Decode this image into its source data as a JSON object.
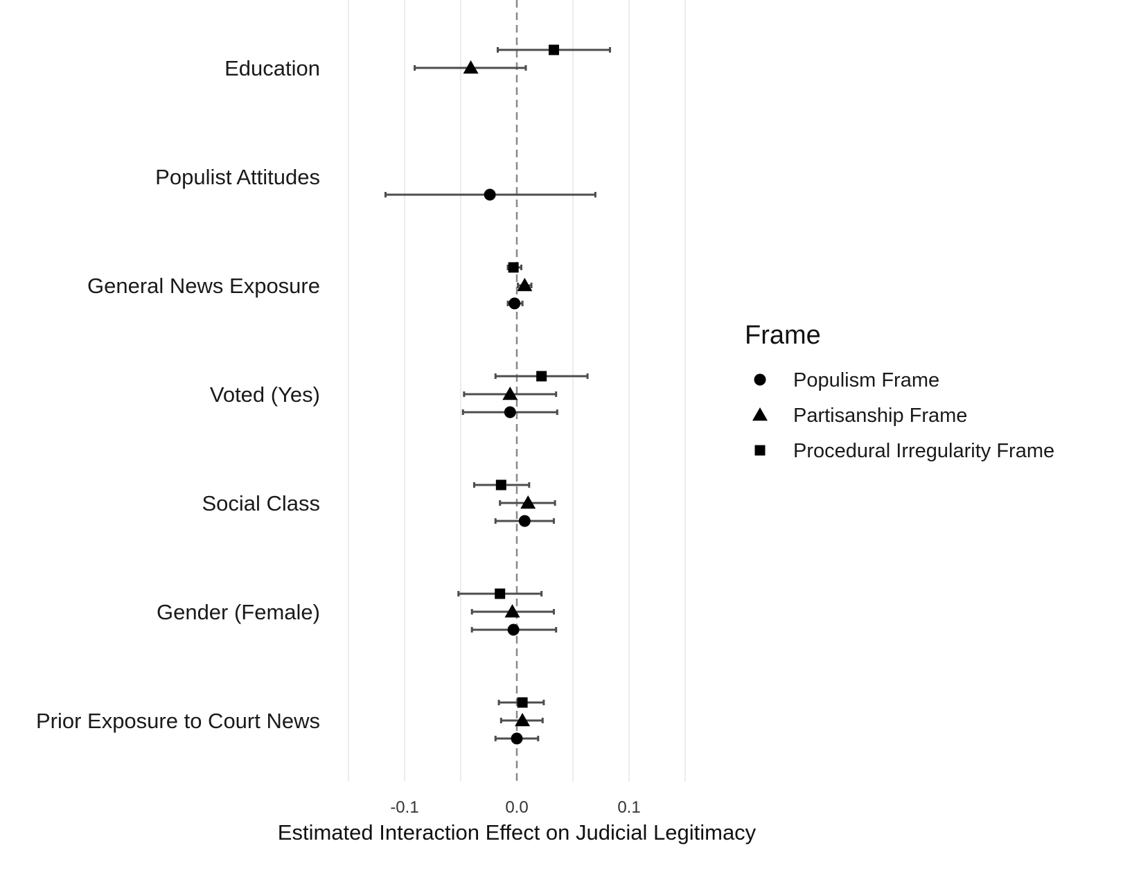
{
  "chart_data": {
    "type": "scatter",
    "subtype": "coefficient-plot-with-error-bars",
    "xlabel": "Estimated Interaction Effect on Judicial Legitimacy",
    "ylabel": "",
    "xlim": [
      -0.15,
      0.15
    ],
    "xticks": [
      -0.1,
      0.0,
      0.1
    ],
    "xtick_labels": [
      "-0.1",
      "0.0",
      "0.1"
    ],
    "grid": true,
    "reference_line": {
      "x": 0.0,
      "style": "dashed",
      "color": "#888888"
    },
    "categories": [
      "Education",
      "Populist Attitudes",
      "General News Exposure",
      "Voted (Yes)",
      "Social Class",
      "Gender (Female)",
      "Prior Exposure to Court News"
    ],
    "legend": {
      "title": "Frame",
      "position": "right"
    },
    "series": [
      {
        "name": "Populism Frame",
        "marker": "circle",
        "color": "#000000",
        "points": [
          {
            "category": "Populist Attitudes",
            "estimate": -0.024,
            "low": -0.117,
            "high": 0.07
          },
          {
            "category": "General News Exposure",
            "estimate": -0.002,
            "low": -0.008,
            "high": 0.005
          },
          {
            "category": "Voted (Yes)",
            "estimate": -0.006,
            "low": -0.048,
            "high": 0.036
          },
          {
            "category": "Social Class",
            "estimate": 0.007,
            "low": -0.019,
            "high": 0.033
          },
          {
            "category": "Gender (Female)",
            "estimate": -0.003,
            "low": -0.04,
            "high": 0.035
          },
          {
            "category": "Prior Exposure to Court News",
            "estimate": 0.0,
            "low": -0.019,
            "high": 0.019
          }
        ]
      },
      {
        "name": "Partisanship Frame",
        "marker": "triangle",
        "color": "#000000",
        "points": [
          {
            "category": "Education",
            "estimate": -0.041,
            "low": -0.091,
            "high": 0.008
          },
          {
            "category": "General News Exposure",
            "estimate": 0.007,
            "low": 0.001,
            "high": 0.013
          },
          {
            "category": "Voted (Yes)",
            "estimate": -0.006,
            "low": -0.047,
            "high": 0.035
          },
          {
            "category": "Social Class",
            "estimate": 0.01,
            "low": -0.015,
            "high": 0.034
          },
          {
            "category": "Gender (Female)",
            "estimate": -0.004,
            "low": -0.04,
            "high": 0.033
          },
          {
            "category": "Prior Exposure to Court News",
            "estimate": 0.005,
            "low": -0.014,
            "high": 0.023
          }
        ]
      },
      {
        "name": "Procedural Irregularity Frame",
        "marker": "square",
        "color": "#000000",
        "points": [
          {
            "category": "Education",
            "estimate": 0.033,
            "low": -0.017,
            "high": 0.083
          },
          {
            "category": "General News Exposure",
            "estimate": -0.003,
            "low": -0.008,
            "high": 0.004
          },
          {
            "category": "Voted (Yes)",
            "estimate": 0.022,
            "low": -0.019,
            "high": 0.063
          },
          {
            "category": "Social Class",
            "estimate": -0.014,
            "low": -0.038,
            "high": 0.011
          },
          {
            "category": "Gender (Female)",
            "estimate": -0.015,
            "low": -0.052,
            "high": 0.022
          },
          {
            "category": "Prior Exposure to Court News",
            "estimate": 0.005,
            "low": -0.016,
            "high": 0.024
          }
        ]
      }
    ]
  }
}
